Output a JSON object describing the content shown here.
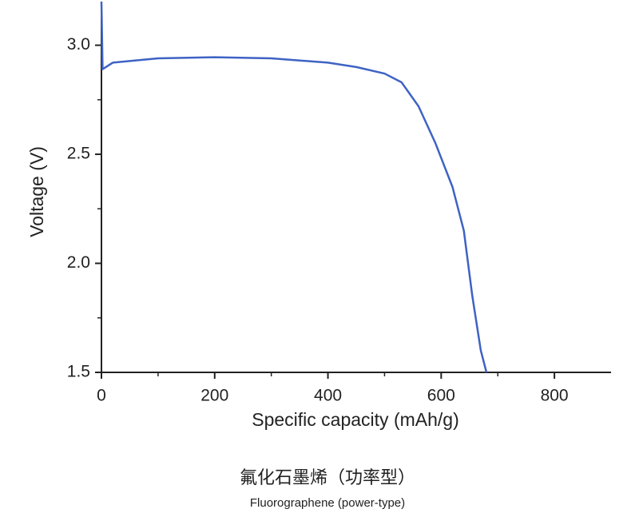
{
  "chart_data": {
    "type": "line",
    "xlabel": "Specific capacity (mAh/g)",
    "ylabel": "Voltage (V)",
    "caption": "氟化石墨烯（功率型）",
    "subcaption": "Fluorographene (power-type)",
    "series": [
      {
        "name": "Fluorographene (power-type)",
        "color": "#3f63c4",
        "x": [
          0,
          2,
          20,
          100,
          200,
          300,
          400,
          450,
          500,
          530,
          560,
          590,
          620,
          640,
          655,
          670,
          680
        ],
        "values": [
          3.2,
          2.89,
          2.92,
          2.94,
          2.945,
          2.94,
          2.92,
          2.9,
          2.87,
          2.83,
          2.72,
          2.55,
          2.35,
          2.15,
          1.85,
          1.6,
          1.5
        ]
      }
    ],
    "xlim": [
      0,
      900
    ],
    "xticks": [
      0,
      200,
      400,
      600,
      800
    ],
    "xminorticks": [
      100,
      300,
      500,
      700
    ],
    "ylim": [
      1.5,
      3.2
    ],
    "yticks": [
      1.5,
      {
        "value": 2.0,
        "label": "2.0"
      },
      2.5,
      {
        "value": 3.0,
        "label": "3.0"
      }
    ],
    "yminorticks": [
      1.75,
      2.25,
      2.75
    ],
    "grid": false
  }
}
